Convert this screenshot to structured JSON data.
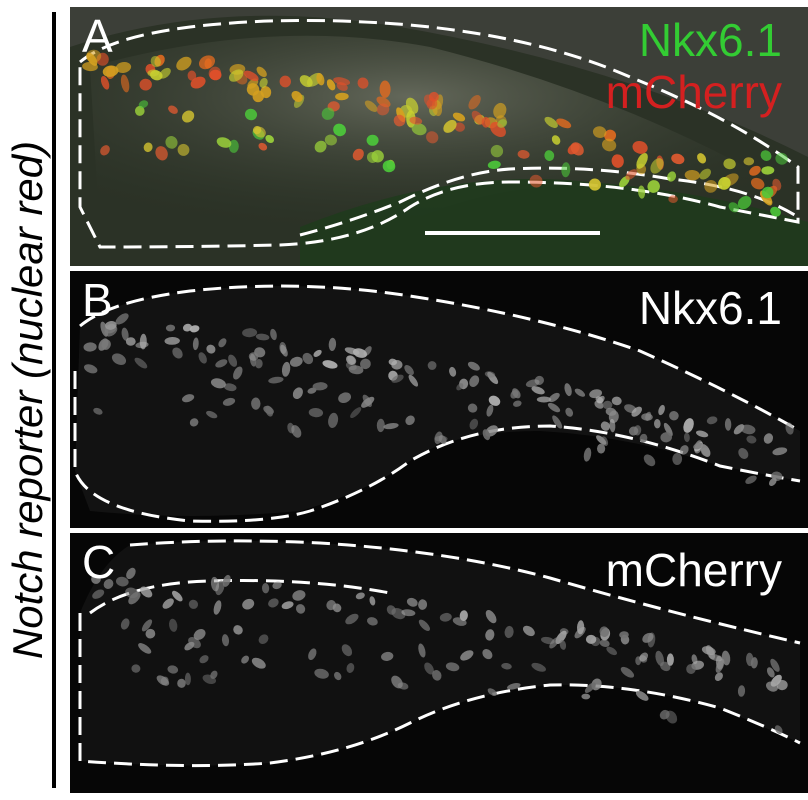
{
  "side_label": {
    "main": "Notch reporter ",
    "paren": "(nuclear red)"
  },
  "panels": [
    {
      "letter": "A",
      "channels": [
        "Nkx6.1",
        "mCherry"
      ]
    },
    {
      "letter": "B",
      "channel": "Nkx6.1"
    },
    {
      "letter": "C",
      "channel": "mCherry"
    }
  ],
  "colors": {
    "nkx": "#33cc33",
    "mcherry": "#d42020",
    "outline": "#ffffff"
  }
}
